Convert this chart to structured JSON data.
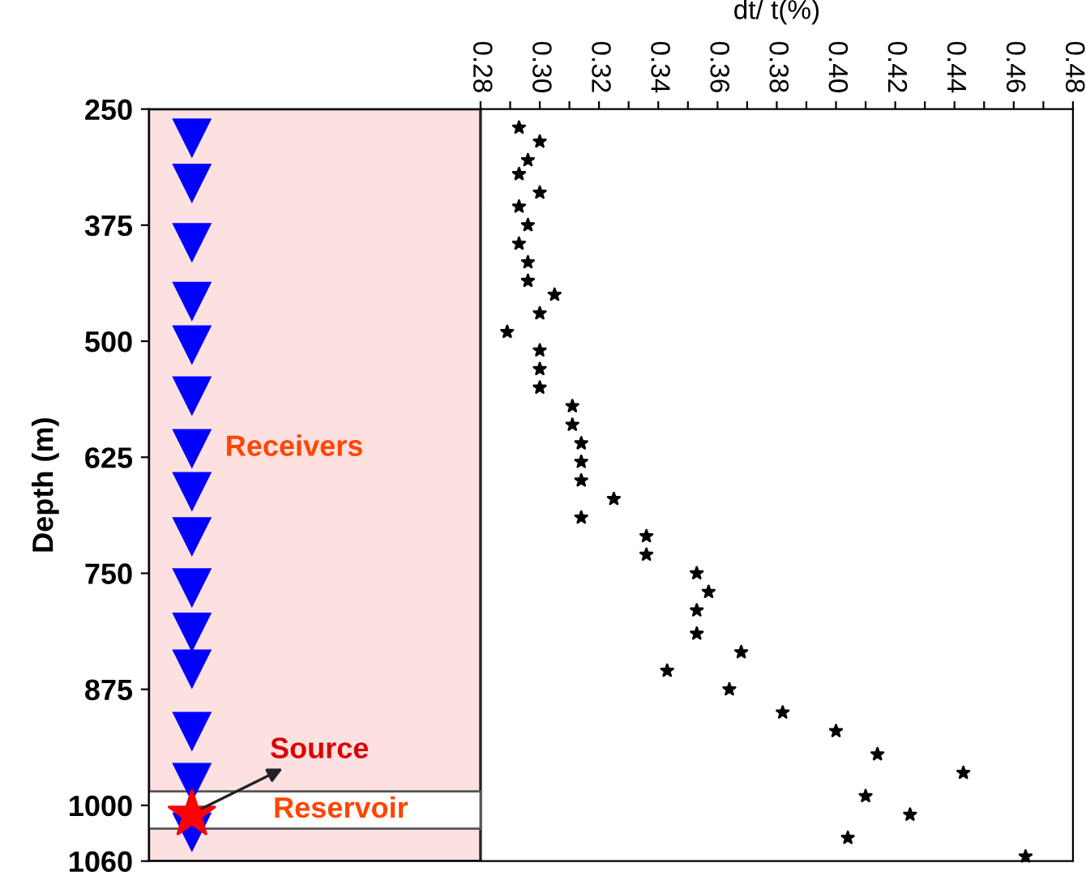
{
  "chart_data": {
    "type": "scatter",
    "xlabel": "dt/ t(%)",
    "ylabel": "Depth (m)",
    "x": [
      0.293,
      0.3,
      0.296,
      0.293,
      0.3,
      0.293,
      0.296,
      0.293,
      0.296,
      0.296,
      0.305,
      0.3,
      0.289,
      0.3,
      0.3,
      0.3,
      0.311,
      0.311,
      0.314,
      0.314,
      0.314,
      0.325,
      0.314,
      0.336,
      0.336,
      0.353,
      0.357,
      0.353,
      0.353,
      0.368,
      0.343,
      0.364,
      0.382,
      0.4,
      0.414,
      0.443,
      0.41,
      0.425,
      0.404,
      0.464
    ],
    "values": [
      270,
      285,
      305,
      320,
      340,
      355,
      375,
      395,
      415,
      435,
      450,
      470,
      490,
      510,
      530,
      550,
      570,
      590,
      610,
      630,
      650,
      670,
      690,
      710,
      730,
      750,
      770,
      790,
      815,
      835,
      855,
      875,
      900,
      920,
      945,
      965,
      990,
      1010,
      1035,
      1055
    ],
    "color": "#000000",
    "marker": "star",
    "xlim": [
      0.168,
      0.48
    ],
    "xticks": [
      0.28,
      {
        "value": 0.29,
        "label": null
      },
      {
        "value": 0.3,
        "label": "0.30"
      },
      {
        "value": 0.31,
        "label": null
      },
      0.32,
      {
        "value": 0.33,
        "label": null
      },
      0.34,
      {
        "value": 0.35,
        "label": null
      },
      0.36,
      {
        "value": 0.37,
        "label": null
      },
      0.38,
      {
        "value": 0.39,
        "label": null
      },
      {
        "value": 0.4,
        "label": "0.40"
      },
      {
        "value": 0.41,
        "label": null
      },
      0.42,
      {
        "value": 0.43,
        "label": null
      },
      0.44,
      {
        "value": 0.45,
        "label": null
      },
      0.46,
      {
        "value": 0.47,
        "label": null
      },
      0.48
    ],
    "ylim": [
      1060,
      250
    ],
    "yticks": [
      250,
      375,
      500,
      625,
      750,
      875,
      1000,
      1060
    ],
    "bands": [
      {
        "axis": "y",
        "from": 985,
        "to": 1025,
        "label": "Reservoir",
        "color": "#ffffff"
      }
    ],
    "annotations": [
      "Receivers",
      "Source"
    ],
    "grid": false,
    "legend": false
  }
}
